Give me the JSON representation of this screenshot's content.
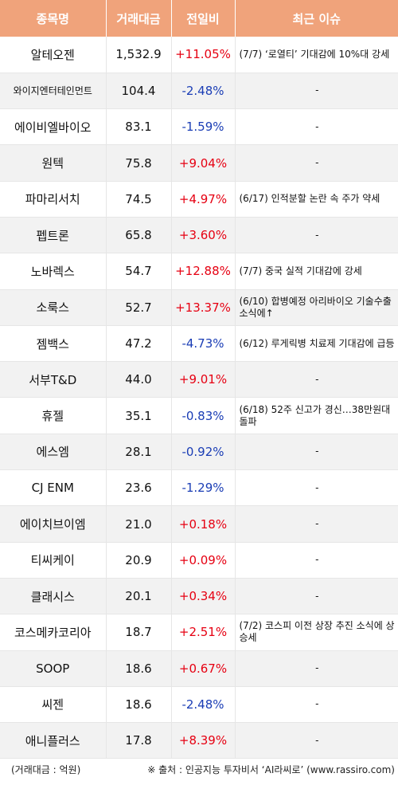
{
  "header": {
    "name": "종목명",
    "volume": "거래대금",
    "change": "전일비",
    "issue": "최근 이슈"
  },
  "rows": [
    {
      "name": "알테오젠",
      "volume": "1,532.9",
      "change": "+11.05%",
      "dir": "up",
      "issue": "(7/7) ‘로열티’ 기대감에 10%대 강세"
    },
    {
      "name": "와이지엔터테인먼트",
      "volume": "104.4",
      "change": "-2.48%",
      "dir": "down",
      "issue": "-"
    },
    {
      "name": "에이비엘바이오",
      "volume": "83.1",
      "change": "-1.59%",
      "dir": "down",
      "issue": "-"
    },
    {
      "name": "원텍",
      "volume": "75.8",
      "change": "+9.04%",
      "dir": "up",
      "issue": "-"
    },
    {
      "name": "파마리서치",
      "volume": "74.5",
      "change": "+4.97%",
      "dir": "up",
      "issue": "(6/17) 인적분할 논란 속 주가 약세"
    },
    {
      "name": "펩트론",
      "volume": "65.8",
      "change": "+3.60%",
      "dir": "up",
      "issue": "-"
    },
    {
      "name": "노바렉스",
      "volume": "54.7",
      "change": "+12.88%",
      "dir": "up",
      "issue": "(7/7) 중국 실적 기대감에 강세"
    },
    {
      "name": "소룩스",
      "volume": "52.7",
      "change": "+13.37%",
      "dir": "up",
      "issue": "(6/10) 합병예정 아리바이오 기술수출 소식에↑"
    },
    {
      "name": "젬백스",
      "volume": "47.2",
      "change": "-4.73%",
      "dir": "down",
      "issue": "(6/12) 루게릭병 치료제 기대감에 급등"
    },
    {
      "name": "서부T&D",
      "volume": "44.0",
      "change": "+9.01%",
      "dir": "up",
      "issue": "-"
    },
    {
      "name": "휴젤",
      "volume": "35.1",
      "change": "-0.83%",
      "dir": "down",
      "issue": "(6/18) 52주 신고가 경신…38만원대 돌파"
    },
    {
      "name": "에스엠",
      "volume": "28.1",
      "change": "-0.92%",
      "dir": "down",
      "issue": "-"
    },
    {
      "name": "CJ ENM",
      "volume": "23.6",
      "change": "-1.29%",
      "dir": "down",
      "issue": "-"
    },
    {
      "name": "에이치브이엠",
      "volume": "21.0",
      "change": "+0.18%",
      "dir": "up",
      "issue": "-"
    },
    {
      "name": "티씨케이",
      "volume": "20.9",
      "change": "+0.09%",
      "dir": "up",
      "issue": "-"
    },
    {
      "name": "클래시스",
      "volume": "20.1",
      "change": "+0.34%",
      "dir": "up",
      "issue": "-"
    },
    {
      "name": "코스메카코리아",
      "volume": "18.7",
      "change": "+2.51%",
      "dir": "up",
      "issue": "(7/2) 코스피 이전 상장 추진 소식에 상승세"
    },
    {
      "name": "SOOP",
      "volume": "18.6",
      "change": "+0.67%",
      "dir": "up",
      "issue": "-"
    },
    {
      "name": "씨젠",
      "volume": "18.6",
      "change": "-2.48%",
      "dir": "down",
      "issue": "-"
    },
    {
      "name": "애니플러스",
      "volume": "17.8",
      "change": "+8.39%",
      "dir": "up",
      "issue": "-"
    }
  ],
  "footer": {
    "unit": "(거래대금 : 억원)",
    "source": "※ 출처 : 인공지능 투자비서 ‘AI라씨로’ (www.rassiro.com)"
  },
  "colors": {
    "header_bg": "#f0a37b",
    "up": "#e60012",
    "down": "#1a3db5"
  }
}
